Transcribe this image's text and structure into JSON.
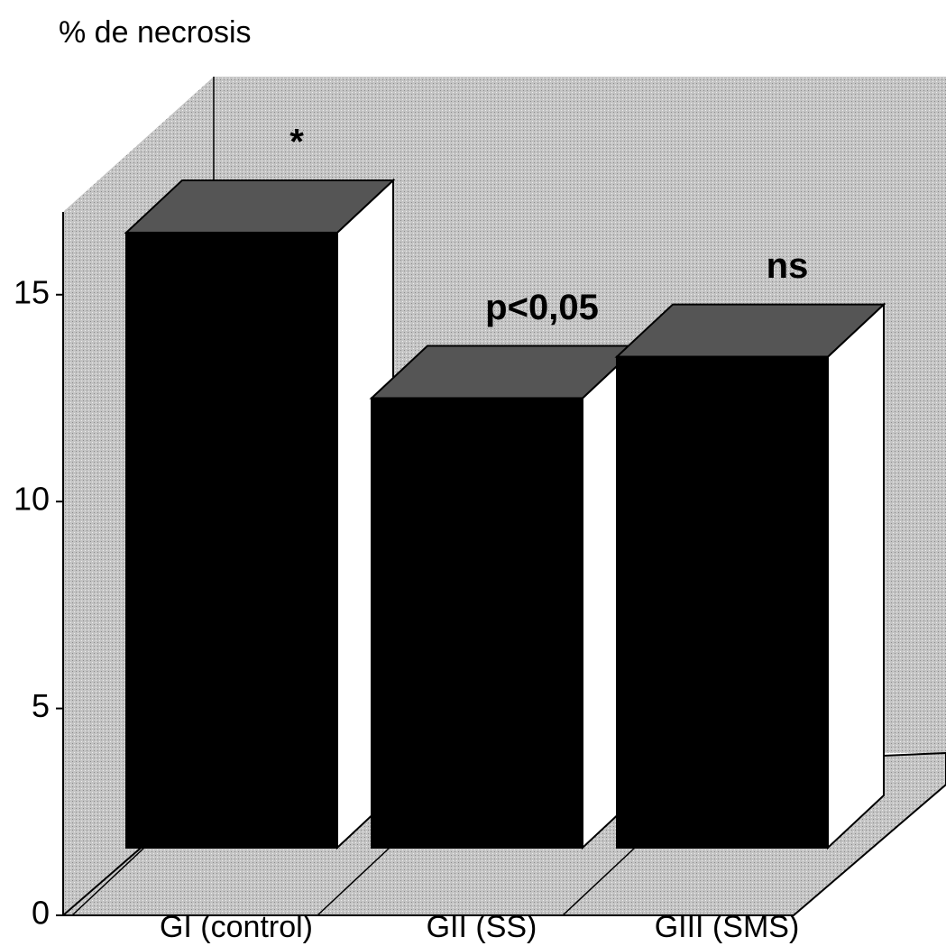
{
  "chart_data": {
    "type": "bar3d",
    "title": "% de necrosis",
    "categories": [
      "GI (control)",
      "GII (SS)",
      "GIII (SMS)"
    ],
    "values": [
      16.5,
      12.5,
      13.5
    ],
    "annotations": [
      "*",
      "p<0,05",
      "ns"
    ],
    "color": "#000000",
    "ylim": [
      0,
      17
    ],
    "yticks": [
      0,
      5,
      10,
      15
    ]
  }
}
